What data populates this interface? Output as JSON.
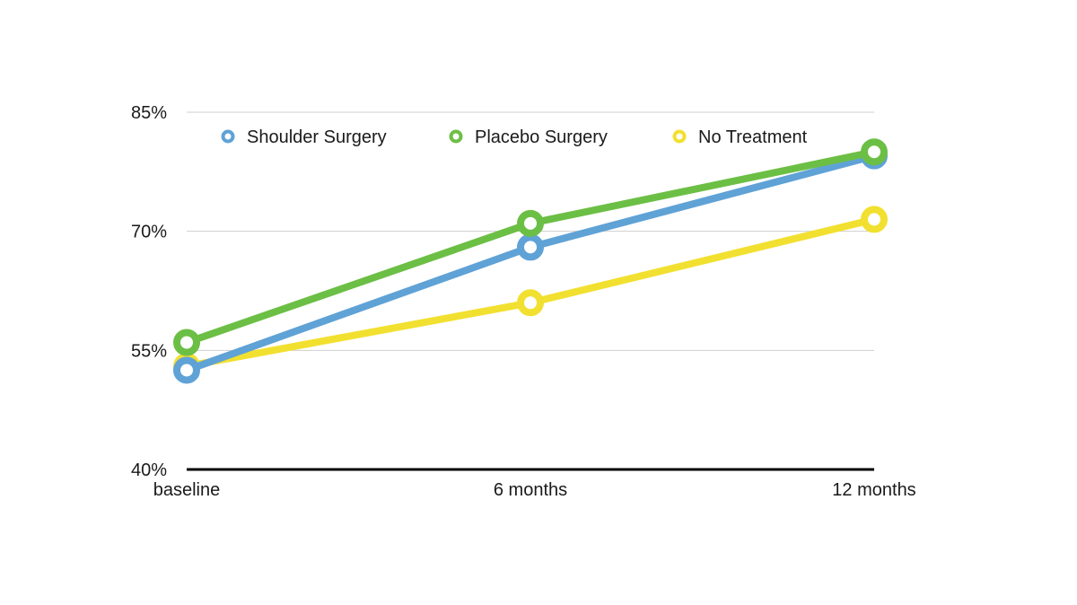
{
  "chart_data": {
    "type": "line",
    "title": "",
    "xlabel": "",
    "ylabel": "",
    "categories": [
      "baseline",
      "6 months",
      "12 months"
    ],
    "y_ticks": [
      {
        "value": 40,
        "label": "40%"
      },
      {
        "value": 55,
        "label": "55%"
      },
      {
        "value": 70,
        "label": "70%"
      },
      {
        "value": 85,
        "label": "85%"
      }
    ],
    "ylim": [
      40,
      85
    ],
    "grid": true,
    "legend_position": "top",
    "series": [
      {
        "name": "Shoulder Surgery",
        "color": "#5fa2d6",
        "values": [
          52.5,
          68,
          79.5
        ]
      },
      {
        "name": "Placebo Surgery",
        "color": "#6cbf45",
        "values": [
          56,
          71,
          80
        ]
      },
      {
        "name": "No Treatment",
        "color": "#f2e030",
        "values": [
          53,
          61,
          71.5
        ]
      }
    ]
  }
}
